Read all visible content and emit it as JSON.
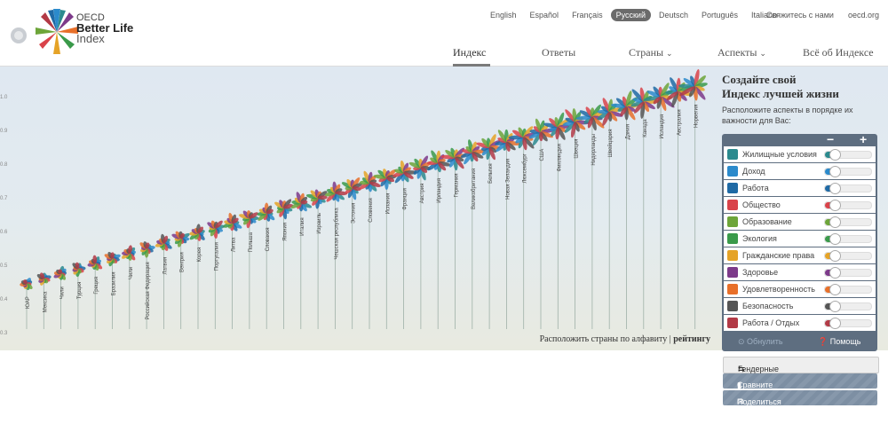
{
  "logo": {
    "line1": "OECD",
    "line2": "Better Life",
    "line3": "Index"
  },
  "languages": [
    {
      "label": "English",
      "active": false
    },
    {
      "label": "Español",
      "active": false
    },
    {
      "label": "Français",
      "active": false
    },
    {
      "label": "Русский",
      "active": true
    },
    {
      "label": "Deutsch",
      "active": false
    },
    {
      "label": "Português",
      "active": false
    },
    {
      "label": "Italiano",
      "active": false
    }
  ],
  "util": {
    "contact": "Свяжитесь с нами",
    "site": "oecd.org"
  },
  "nav": [
    {
      "label": "Индекс",
      "active": true
    },
    {
      "label": "Ответы",
      "active": false
    },
    {
      "label": "Страны",
      "dropdown": true
    },
    {
      "label": "Аспекты",
      "dropdown": true
    },
    {
      "label": "Всё об Индексе",
      "active": false
    }
  ],
  "countries": [
    "ЮАР",
    "Мексика",
    "Чили",
    "Турция",
    "Греция",
    "Бразилия",
    "Чили",
    "Российская Федерация",
    "Латвия",
    "Венгрия",
    "Корея",
    "Португалия",
    "Литва",
    "Польша",
    "Словакия",
    "Япония",
    "Италия",
    "Израиль",
    "Чешская республика",
    "Эстония",
    "Словения",
    "Испания",
    "Франция",
    "Австрия",
    "Ирландия",
    "Германия",
    "Великобритания",
    "Бельгия",
    "Новая Зеландия",
    "Люксембург",
    "США",
    "Финляндия",
    "Швеция",
    "Нидерланды",
    "Швейцария",
    "Дания",
    "Канада",
    "Исландия",
    "Австралия",
    "Норвегия"
  ],
  "sort": {
    "prefix": "Расположить страны по",
    "alpha": "алфавиту",
    "sep": "|",
    "rank": "рейтингу"
  },
  "panel": {
    "title_line1": "Создайте свой",
    "title_line2": "Индекс лучшей жизни",
    "subtitle": "Расположите аспекты в порядке их важности для Вас:",
    "minus": "−",
    "plus": "+",
    "topics": [
      {
        "label": "Жилищные условия",
        "color": "#2b8a8e",
        "icon": "house-icon"
      },
      {
        "label": "Доход",
        "color": "#2b8acb",
        "icon": "coin-icon"
      },
      {
        "label": "Работа",
        "color": "#1f6aa5",
        "icon": "briefcase-icon"
      },
      {
        "label": "Общество",
        "color": "#d9434a",
        "icon": "people-icon"
      },
      {
        "label": "Образование",
        "color": "#6da539",
        "icon": "book-icon"
      },
      {
        "label": "Экология",
        "color": "#3a9a4a",
        "icon": "tree-icon"
      },
      {
        "label": "Гражданские права",
        "color": "#e5a327",
        "icon": "ballot-icon"
      },
      {
        "label": "Здоровье",
        "color": "#7d3a8a",
        "icon": "cross-icon"
      },
      {
        "label": "Удовлетворенность",
        "color": "#e8702a",
        "icon": "heart-icon"
      },
      {
        "label": "Безопасность",
        "color": "#555555",
        "icon": "runner-icon"
      },
      {
        "label": "Работа / Отдых",
        "color": "#b23a46",
        "icon": "balance-icon"
      }
    ],
    "reset": "Обнулить",
    "help": "Помощь"
  },
  "buttons": {
    "gender": "Гендерные различия",
    "compare": "Сравните с другими",
    "share": "Поделиться своим индексом"
  },
  "y_ticks": [
    "1.0",
    "0.9",
    "0.8",
    "0.7",
    "0.6",
    "0.5",
    "0.4",
    "0.3",
    "0.2",
    "0.1"
  ]
}
